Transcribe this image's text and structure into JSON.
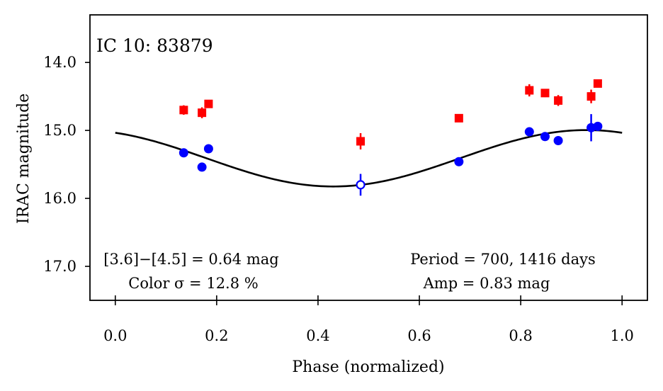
{
  "chart_data": {
    "type": "scatter",
    "title": "IC 10:  83879",
    "xlabel": "Phase (normalized)",
    "ylabel": "IRAC magnitude",
    "xlim": [
      -0.05,
      1.05
    ],
    "ylim": [
      17.5,
      13.3
    ],
    "y_inverted": true,
    "xticks": [
      0.0,
      0.2,
      0.4,
      0.6,
      0.8,
      1.0
    ],
    "xtick_labels": [
      "0.0",
      "0.2",
      "0.4",
      "0.6",
      "0.8",
      "1.0"
    ],
    "yticks": [
      14.0,
      15.0,
      16.0,
      17.0
    ],
    "ytick_labels": [
      "14.0",
      "15.0",
      "16.0",
      "17.0"
    ],
    "series": [
      {
        "name": "[4.5]",
        "color": "#ff0000",
        "marker": "square",
        "points": [
          {
            "x": 0.135,
            "y": 14.7,
            "err": 0.07
          },
          {
            "x": 0.171,
            "y": 14.74,
            "err": 0.08
          },
          {
            "x": 0.184,
            "y": 14.61,
            "err": 0.05
          },
          {
            "x": 0.484,
            "y": 15.16,
            "err": 0.12
          },
          {
            "x": 0.678,
            "y": 14.82,
            "err": 0.04
          },
          {
            "x": 0.817,
            "y": 14.41,
            "err": 0.09
          },
          {
            "x": 0.848,
            "y": 14.45,
            "err": 0.06
          },
          {
            "x": 0.874,
            "y": 14.56,
            "err": 0.08
          },
          {
            "x": 0.939,
            "y": 14.5,
            "err": 0.1
          },
          {
            "x": 0.952,
            "y": 14.31,
            "err": 0.05
          }
        ]
      },
      {
        "name": "[3.6]",
        "color": "#0000ff",
        "marker": "circle",
        "points": [
          {
            "x": 0.135,
            "y": 15.33,
            "err": 0.05
          },
          {
            "x": 0.171,
            "y": 15.54,
            "err": 0.05
          },
          {
            "x": 0.184,
            "y": 15.27,
            "err": 0.05
          },
          {
            "x": 0.484,
            "y": 15.8,
            "err": 0.16,
            "open": true
          },
          {
            "x": 0.678,
            "y": 15.46,
            "err": 0.05
          },
          {
            "x": 0.817,
            "y": 15.02,
            "err": 0.06
          },
          {
            "x": 0.848,
            "y": 15.09,
            "err": 0.06
          },
          {
            "x": 0.874,
            "y": 15.15,
            "err": 0.06
          },
          {
            "x": 0.939,
            "y": 14.96,
            "err": 0.2
          },
          {
            "x": 0.952,
            "y": 14.94,
            "err": 0.05
          }
        ]
      }
    ],
    "fit_curve": {
      "color": "#000000",
      "mean": 15.41,
      "amplitude": 0.83,
      "phase_of_max_brightness": 0.93,
      "x_range": [
        0.0,
        1.0
      ]
    },
    "annotations": {
      "color_line1": "[3.6]−[4.5] = 0.64 mag",
      "color_line2": "Color σ = 12.8 %",
      "period_line1": "Period = 700, 1416 days",
      "period_line2": "Amp = 0.83 mag"
    }
  }
}
